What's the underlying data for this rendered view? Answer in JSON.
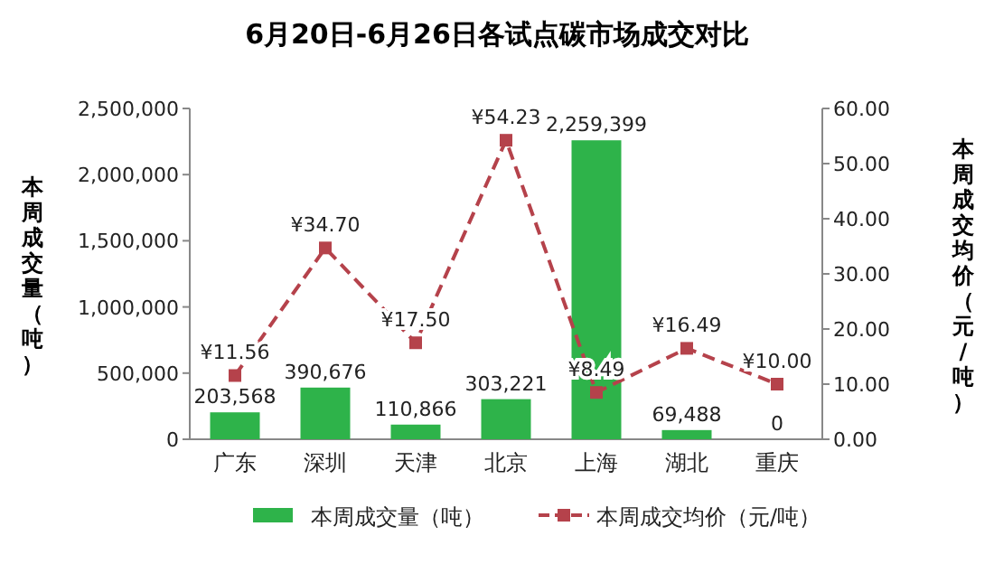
{
  "chart_data": {
    "type": "bar",
    "title": "6月20日-6月26日各试点碳市场成交对比",
    "ylabel": "本周成交量（吨）",
    "y2label": "本周成交均价（元/吨）",
    "categories": [
      "广东",
      "深圳",
      "天津",
      "北京",
      "上海",
      "湖北",
      "重庆"
    ],
    "series": [
      {
        "name": "本周成交量（吨）",
        "color": "#2eb34a",
        "values": [
          203568,
          390676,
          110866,
          303221,
          2259399,
          69488,
          0
        ],
        "value_labels": [
          "203,568",
          "390,676",
          "110,866",
          "303,221",
          "2,259,399",
          "69,488",
          "0"
        ]
      },
      {
        "name": "本周成交均价（元/吨）",
        "type": "line",
        "axis": "y2",
        "color": "#b5424b",
        "values": [
          11.56,
          34.7,
          17.5,
          54.23,
          8.49,
          16.49,
          10.0
        ],
        "value_labels": [
          "¥11.56",
          "¥34.70",
          "¥17.50",
          "¥54.23",
          "¥8.49",
          "¥16.49",
          "¥10.00"
        ],
        "marker": "square",
        "line_style": "dashed"
      }
    ],
    "ylim": [
      0,
      2500000
    ],
    "yticks": [
      {
        "value": 0,
        "label": "0"
      },
      {
        "value": 500000,
        "label": "500,000"
      },
      {
        "value": 1000000,
        "label": "1,000,000"
      },
      {
        "value": 1500000,
        "label": "1,500,000"
      },
      {
        "value": 2000000,
        "label": "2,000,000"
      },
      {
        "value": 2500000,
        "label": "2,500,000"
      }
    ],
    "y2lim": [
      0,
      60
    ],
    "y2ticks": [
      {
        "value": 0,
        "label": "0.00"
      },
      {
        "value": 10,
        "label": "10.00"
      },
      {
        "value": 20,
        "label": "20.00"
      },
      {
        "value": 30,
        "label": "30.00"
      },
      {
        "value": 40,
        "label": "40.00"
      },
      {
        "value": 50,
        "label": "50.00"
      },
      {
        "value": 60,
        "label": "60.00"
      }
    ],
    "legend": "bottom"
  }
}
